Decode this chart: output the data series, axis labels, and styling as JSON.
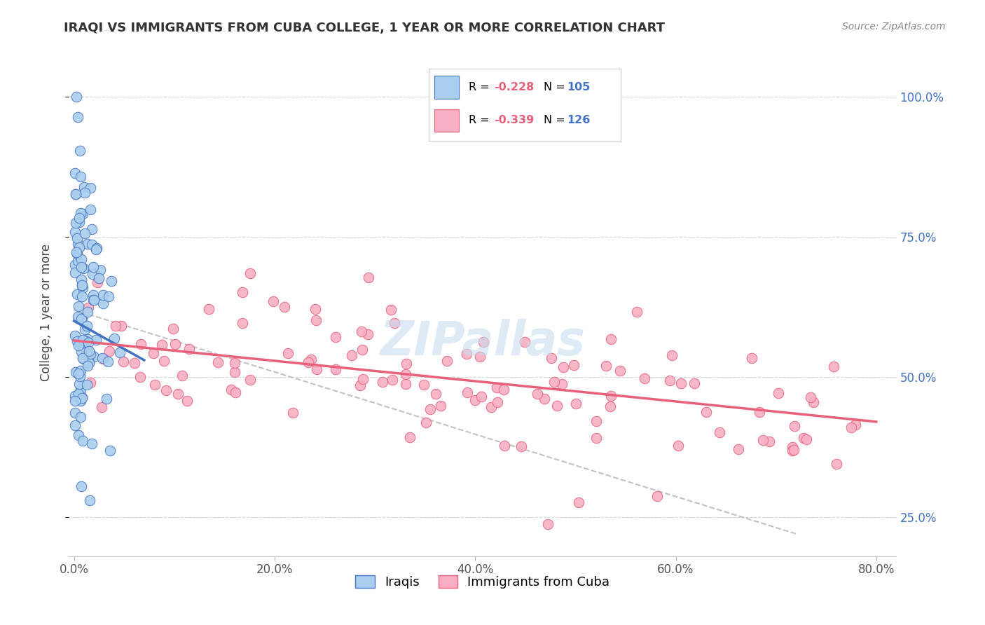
{
  "title": "IRAQI VS IMMIGRANTS FROM CUBA COLLEGE, 1 YEAR OR MORE CORRELATION CHART",
  "source_text": "Source: ZipAtlas.com",
  "ylabel": "College, 1 year or more",
  "legend_label_1": "Iraqis",
  "legend_label_2": "Immigrants from Cuba",
  "r1": -0.228,
  "n1": 105,
  "r2": -0.339,
  "n2": 126,
  "color1": "#aacfee",
  "color1_edge": "#4472c4",
  "color1_line": "#4472c4",
  "color2": "#f8afc4",
  "color2_edge": "#e8607a",
  "color2_line": "#e8607a",
  "xlim_min": -0.005,
  "xlim_max": 0.82,
  "ylim_min": 0.18,
  "ylim_max": 1.05,
  "xtick_vals": [
    0.0,
    0.2,
    0.4,
    0.6,
    0.8
  ],
  "xtick_labels": [
    "0.0%",
    "20.0%",
    "40.0%",
    "60.0%",
    "80.0%"
  ],
  "ytick_vals": [
    0.25,
    0.5,
    0.75,
    1.0
  ],
  "ytick_labels": [
    "25.0%",
    "50.0%",
    "75.0%",
    "100.0%"
  ],
  "grid_color": "#cccccc",
  "background_color": "#ffffff",
  "watermark": "ZIPallas",
  "watermark_color": "#c8ddf0",
  "r1_color": "#e8607a",
  "n1_color": "#4472c4",
  "r2_color": "#e8607a",
  "n2_color": "#4472c4",
  "iraqi_seed": 42,
  "cuba_seed": 42,
  "blue_line_x0": 0.0,
  "blue_line_x1": 0.07,
  "blue_line_y0": 0.6,
  "blue_line_y1": 0.53,
  "pink_line_x0": 0.0,
  "pink_line_x1": 0.8,
  "pink_line_y0": 0.565,
  "pink_line_y1": 0.42,
  "dash_line_x0": 0.0,
  "dash_line_x1": 0.72,
  "dash_line_y0": 0.62,
  "dash_line_y1": 0.22
}
